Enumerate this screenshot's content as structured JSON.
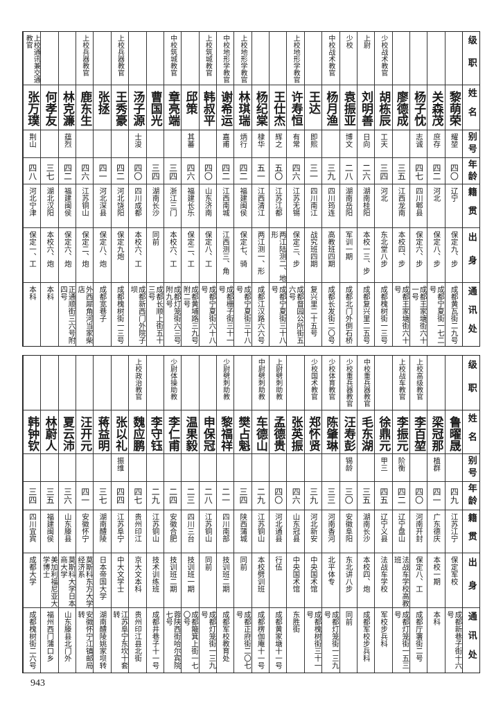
{
  "headers": [
    "级职",
    "姓名",
    "别号",
    "年龄",
    "籍贯",
    "出身",
    "通讯处"
  ],
  "top_rows": [
    {
      "rank": "",
      "name": "黎萌荣",
      "alias": "耀堃",
      "age": "四〇",
      "native": "辽宁",
      "origin": "保定九、步",
      "address": "成都黄瓦街二九号"
    },
    {
      "rank": "",
      "name": "关森茂",
      "alias": "庶存",
      "age": "四二",
      "native": "河北",
      "origin": "保定八、步",
      "address": "成都宁夏街一七二号"
    },
    {
      "rank": "",
      "name": "杨子忱",
      "alias": "志诚",
      "age": "四七",
      "native": "四川郫县",
      "origin": "保定六、步",
      "address": "成都王家塘街六十一号"
    },
    {
      "rank": "",
      "name": "廖德成",
      "alias": "",
      "age": "三五",
      "native": "江西龙南",
      "origin": "本校四、步",
      "address": "成都王家塘街六十号"
    },
    {
      "rank": "少校战术教官",
      "name": "胡栋辰",
      "alias": "工天",
      "age": "三四",
      "native": "河北",
      "origin": "东北堂八步",
      "address": "成都槐树街一三号"
    },
    {
      "rank": "上尉",
      "name": "刘明善",
      "alias": "日向",
      "age": "二六",
      "native": "湖南桂阳",
      "origin": "本校一三、步",
      "address": "成都复兴里二五号"
    },
    {
      "rank": "少校",
      "name": "袁振亚",
      "alias": "博文",
      "age": "二八",
      "native": "湖南岳阳",
      "origin": "军训一期",
      "address": "成都北门外倒石桥"
    },
    {
      "rank": "中校战术教官",
      "name": "杨月渔",
      "alias": "",
      "age": "三九",
      "native": "四川筠连",
      "origin": "高教班四期",
      "address": "成都长发街二〇号"
    },
    {
      "rank": "",
      "name": "王达",
      "alias": "即熙",
      "age": "三一",
      "native": "四川南江",
      "origin": "战究班四期",
      "address": "复兴里二十五号"
    },
    {
      "rank": "上校地形学教官",
      "name": "许寿恒",
      "alias": "有常",
      "age": "四六",
      "native": "江苏无锡",
      "origin": "保定三、步",
      "address": "成都督园公所街五六号"
    },
    {
      "rank": "",
      "name": "王仕杰",
      "alias": "辉之",
      "age": "五〇",
      "native": "江苏江都",
      "origin": "两江陆测二、地形",
      "address": "成都宁夏街三十八号"
    },
    {
      "rank": "",
      "name": "杨纪棠",
      "alias": "棣华",
      "age": "五一",
      "native": "江西清江",
      "origin": "两江测一、形",
      "address": "成都江汉路六六号"
    },
    {
      "rank": "上校地形学教官",
      "name": "林琪瑞",
      "alias": "炳行",
      "age": "四二",
      "native": "福建闽侯",
      "origin": "保定七、骑",
      "address": "成都宁夏街三十八号"
    },
    {
      "rank": "中校地形学教官",
      "name": "谢希运",
      "alias": "嘉甫",
      "age": "四二",
      "native": "江西南城",
      "origin": "江西测三、角",
      "address": "成都栅子街三十一号"
    },
    {
      "rank": "上校筑城教官",
      "name": "韩叔平",
      "alias": "",
      "age": "四〇",
      "native": "山东济南",
      "origin": "保定八、工",
      "address": "成都宁夏街六十八号"
    },
    {
      "rank": "",
      "name": "邱策",
      "alias": "其蕃",
      "age": "四六",
      "native": "福建长乐",
      "origin": "保定二、工",
      "address": "成都黄埔路三九号附二号"
    },
    {
      "rank": "中校筑城教官",
      "name": "章亮端",
      "alias": "",
      "age": "三四",
      "native": "浙江三门",
      "origin": "本校六、工",
      "address": "成都灯笼街六三号附九号"
    },
    {
      "rank": "",
      "name": "曹国光",
      "alias": "",
      "age": "三四",
      "native": "湖南长沙",
      "origin": "同前",
      "address": "成都长顺上街五十三号"
    },
    {
      "rank": "",
      "name": "汤子源",
      "alias": "士浚",
      "age": "四〇",
      "native": "四川成都",
      "origin": "本校六、工",
      "address": "成都新西门外院子坝"
    },
    {
      "rank": "上校兵器教官",
      "name": "王秀豪",
      "alias": "",
      "age": "四二",
      "native": "河北饶阳",
      "origin": "保定九炮",
      "address": "成都槐树街一三号"
    },
    {
      "rank": "",
      "name": "张拯",
      "alias": "",
      "age": "四一",
      "native": "河北深县",
      "origin": "保定八、炮",
      "address": "成都宽巷子"
    },
    {
      "rank": "上校兵器教官",
      "name": "鹿东生",
      "alias": "",
      "age": "四六",
      "native": "江苏铜山",
      "origin": "保定二、炮",
      "address": "外西犀角河当家柴店"
    },
    {
      "rank": "",
      "name": "林克濂",
      "alias": "蕴烈",
      "age": "四二",
      "native": "福建闽侯",
      "origin": "保定六、炮",
      "address": "正通顺街三六号附四号"
    },
    {
      "rank": "",
      "name": "何孝友",
      "alias": "",
      "age": "三七",
      "native": "湖北汉阳",
      "origin": "本校六、炮",
      "address": "本科"
    },
    {
      "rank": "上校通讯兼交通教官",
      "name": "张万璞",
      "alias": "荆山",
      "age": "四八",
      "native": "河北宁津",
      "origin": "保定一、工",
      "address": "本科"
    }
  ],
  "bottom_rows": [
    {
      "rank": "",
      "name": "鲁曜晟",
      "alias": "",
      "age": "四九",
      "native": "江苏江宁",
      "origin": "保定军校",
      "address": "成都新巷子街十六号"
    },
    {
      "rank": "",
      "name": "梁冠那",
      "alias": "植群",
      "age": "四一",
      "native": "广东德庆",
      "origin": "本校一期",
      "address": "本科"
    },
    {
      "rank": "上校高级教官",
      "name": "李百堃",
      "alias": "",
      "age": "四〇",
      "native": "河南开封",
      "origin": "保定八、工",
      "address": "成都厅署街二号"
    },
    {
      "rank": "上校战车教官",
      "name": "李振元",
      "alias": "阶衡",
      "age": "四二",
      "native": "辽宁盘山",
      "origin": "法战车学校高教班",
      "address": "成都灯笼街一五三号"
    },
    {
      "rank": "",
      "name": "徐鼎元",
      "alias": "甲三",
      "age": "四五",
      "native": "辽宁义县",
      "origin": "法战车学校",
      "address": "军校步兵科"
    },
    {
      "rank": "中校重兵器教官",
      "name": "毛东湖",
      "alias": "",
      "age": "三五",
      "native": "湖南长沙",
      "origin": "本校四、炮",
      "address": "成都军校步兵科"
    },
    {
      "rank": "少校重兵器教官",
      "name": "汪寿彭",
      "alias": "锡龄",
      "age": "三〇",
      "native": "安徽阜阳",
      "origin": "东北讲八步",
      "address": "同前"
    },
    {
      "rank": "少校体育教官",
      "name": "陈肇琳",
      "alias": "",
      "age": "三三",
      "native": "河南香河",
      "origin": "北平体专",
      "address": "成都灯笼街一三九号"
    },
    {
      "rank": "少校国术教官",
      "name": "郑怀贤",
      "alias": "",
      "age": "三九",
      "native": "河北新安",
      "origin": "中央国术馆",
      "address": "成都槐树街三十一号"
    },
    {
      "rank": "",
      "name": "张英振",
      "alias": "",
      "age": "四六",
      "native": "山东冠县",
      "origin": "中央国术馆",
      "address": "东胜街"
    },
    {
      "rank": "上尉劈刺助教",
      "name": "孟德贵",
      "alias": "",
      "age": "四〇",
      "native": "河北通县",
      "origin": "行伍",
      "address": "成都黄家塘十一号"
    },
    {
      "rank": "中尉劈刺助教",
      "name": "车德山",
      "alias": "",
      "age": "二九",
      "native": "江苏铜山",
      "origin": "本校劈训班",
      "address": "成都楞伽庵十一号"
    },
    {
      "rank": "",
      "name": "樊占魁",
      "alias": "",
      "age": "三四",
      "native": "陕西蒲城",
      "origin": "同前",
      "address": "成都正府街二〇七号"
    },
    {
      "rank": "少尉劈刺助教",
      "name": "黎福祥",
      "alias": "",
      "age": "二一",
      "native": "四川南部",
      "origin": "技训班二期",
      "address": "成都军校教育处"
    },
    {
      "rank": "",
      "name": "申保冠",
      "alias": "",
      "age": "二八",
      "native": "江苏铜山",
      "origin": "同前",
      "address": "成都灯笼街一三九号"
    },
    {
      "rank": "",
      "name": "温果毅",
      "alias": "",
      "age": "二三",
      "native": "四川三台",
      "origin": "技训班一期",
      "address": "成都簸箕上街一七〇号"
    },
    {
      "rank": "少尉体操助教",
      "name": "李仁甫",
      "alias": "",
      "age": "二四",
      "native": "安徽合肥",
      "origin": "技训班二期",
      "address": "蓉陕西街哈尔宾院七号"
    },
    {
      "rank": "",
      "name": "李守钰",
      "alias": "",
      "age": "二九",
      "native": "江苏铜山",
      "origin": "技术训练班",
      "address": "成都井巷子十一号"
    },
    {
      "rank": "上校政治教官",
      "name": "魏应鹏",
      "alias": "",
      "age": "四七",
      "native": "贵州印江",
      "origin": "京大文本科",
      "address": "贵州印江县北街"
    },
    {
      "rank": "",
      "name": "张以礼",
      "alias": "振维",
      "age": "四四",
      "native": "江苏阜宁",
      "origin": "中大文学士",
      "address": "江苏阜宁东坎十套转"
    },
    {
      "rank": "",
      "name": "蒋益明",
      "alias": "",
      "age": "三七",
      "native": "湖南醴陵",
      "origin": "日本帝国大学",
      "address": "湖南醴陵姚家坝转"
    },
    {
      "rank": "",
      "name": "汪开元",
      "alias": "",
      "age": "四一",
      "native": "安徽怀宁",
      "origin": "莫斯科东方大学经济系",
      "address": "安徽怀宁江镇邮局转"
    },
    {
      "rank": "",
      "name": "夏云沛",
      "alias": "",
      "age": "三六",
      "native": "山东滕县",
      "origin": "莫斯科大学日本商大学",
      "address": "山东滕县北门外"
    },
    {
      "rank": "",
      "name": "林蔚人",
      "alias": "",
      "age": "三五",
      "native": "福建闽侯",
      "origin": "美加利福尼亚大学博士",
      "address": "福州西门蒲口乡"
    },
    {
      "rank": "",
      "name": "韩钟钦",
      "alias": "",
      "age": "三四",
      "native": "四川宜宾",
      "origin": "成都大学",
      "address": "成都槐树街二六号"
    }
  ],
  "page_number": "943"
}
